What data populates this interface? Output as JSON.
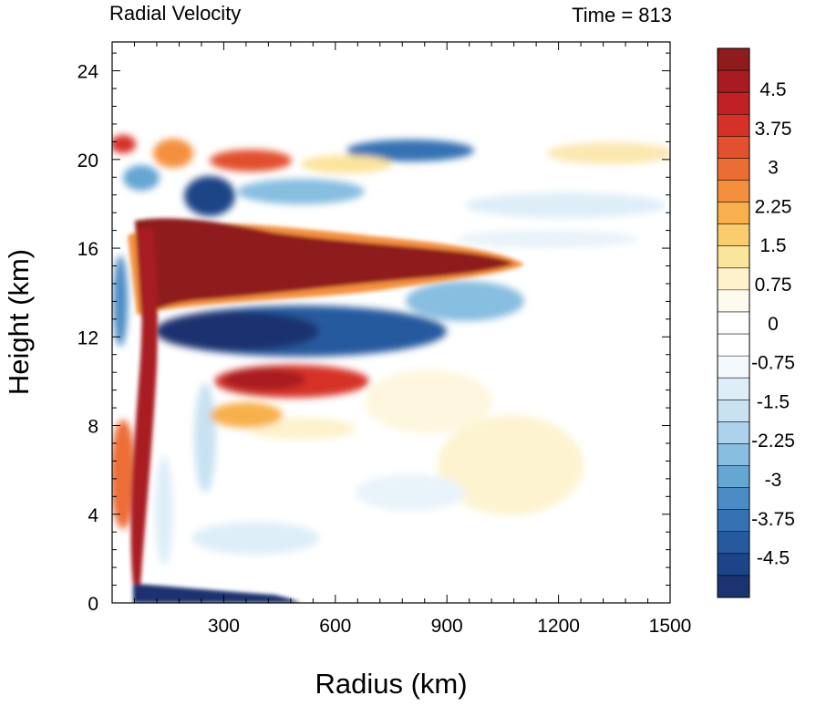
{
  "chart_data": {
    "type": "heatmap",
    "title_left": "Radial Velocity",
    "title_right": "Time = 813",
    "xlabel": "Radius (km)",
    "ylabel": "Height (km)",
    "xlim": [
      0,
      1500
    ],
    "ylim": [
      0,
      25.3
    ],
    "xticks": [
      300,
      600,
      900,
      1200,
      1500
    ],
    "yticks": [
      0,
      4,
      8,
      12,
      16,
      20,
      24
    ],
    "xtick_labels": [
      "300",
      "600",
      "900",
      "1200",
      "1500"
    ],
    "ytick_labels": [
      "0",
      "4",
      "8",
      "12",
      "16",
      "20",
      "24"
    ],
    "colorbar": {
      "labels": [
        "4.5",
        "3.75",
        "3",
        "2.25",
        "1.5",
        "0.75",
        "0",
        "-0.75",
        "-1.5",
        "-2.25",
        "-3",
        "-3.75",
        "-4.5"
      ],
      "colors": [
        "#8f1b1d",
        "#a81c21",
        "#c12025",
        "#d63127",
        "#e2502d",
        "#ec6d34",
        "#f4903c",
        "#f7b04c",
        "#f9cd6d",
        "#fbe49b",
        "#fdf2cc",
        "#fefaee",
        "#ffffff",
        "#ffffff",
        "#f4f9fd",
        "#deeef8",
        "#c8e2f2",
        "#acd3eb",
        "#88bee0",
        "#66a6d3",
        "#4b8cc4",
        "#3672b3",
        "#255a9e",
        "#1c4487",
        "#1b3370"
      ]
    },
    "features": [
      {
        "name": "upper-level outflow jet",
        "sign": "positive",
        "radius_km": [
          80,
          1080
        ],
        "height_km": [
          14.6,
          17.1
        ],
        "peak": 5
      },
      {
        "name": "return inflow below outflow",
        "sign": "negative",
        "radius_km": [
          90,
          700
        ],
        "height_km": [
          11.6,
          13.6
        ],
        "peak": -5
      },
      {
        "name": "mid-level outflow",
        "sign": "positive",
        "radius_km": [
          270,
          470
        ],
        "height_km": [
          9.2,
          10.6
        ],
        "peak": 4
      },
      {
        "name": "boundary-layer inflow",
        "sign": "negative",
        "radius_km": [
          60,
          300
        ],
        "height_km": [
          0,
          0.6
        ],
        "peak": -5
      },
      {
        "name": "eyewall updraft outflow column",
        "sign": "positive",
        "radius_km": [
          60,
          90
        ],
        "height_km": [
          1,
          17
        ],
        "peak": 5
      },
      {
        "name": "upper inflow band",
        "sign": "negative",
        "radius_km": [
          380,
          950
        ],
        "height_km": [
          17.5,
          20.5
        ],
        "peak": -2.5
      },
      {
        "name": "outer weak outflow",
        "sign": "positive",
        "radius_km": [
          900,
          1250
        ],
        "height_km": [
          4,
          9
        ],
        "peak": 1
      }
    ]
  }
}
